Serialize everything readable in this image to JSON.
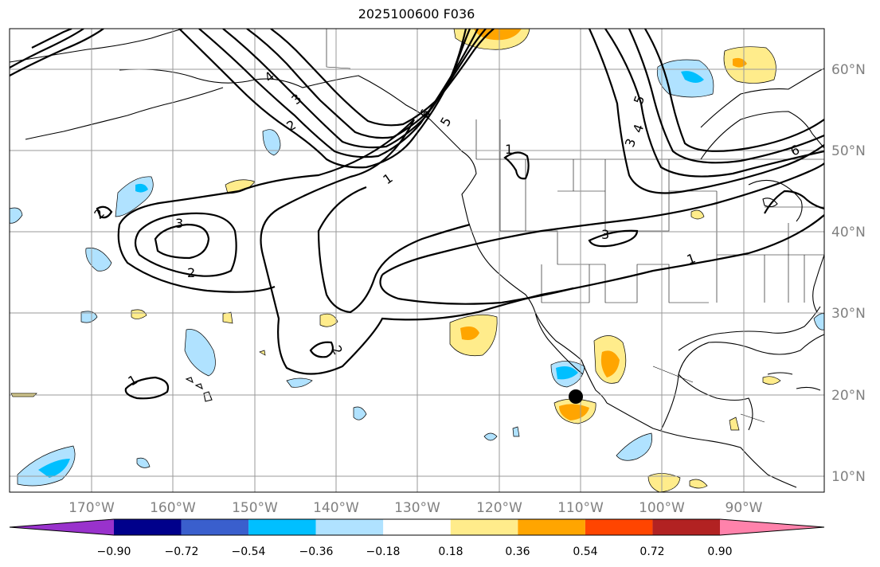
{
  "title": "2025100600 F036",
  "map": {
    "lon_ticks": [
      "170°W",
      "160°W",
      "150°W",
      "140°W",
      "130°W",
      "120°W",
      "110°W",
      "100°W",
      "90°W"
    ],
    "lat_ticks": [
      "60°N",
      "50°N",
      "40°N",
      "30°N",
      "20°N",
      "10°N"
    ],
    "contour_labels": [
      "1",
      "2",
      "3",
      "4",
      "5",
      "6"
    ],
    "marker": {
      "name": "point-marker",
      "lon": -110.2,
      "lat": 19.7
    }
  },
  "colorbar": {
    "ticks": [
      "−0.90",
      "−0.72",
      "−0.54",
      "−0.36",
      "−0.18",
      "0.18",
      "0.36",
      "0.54",
      "0.72",
      "0.90"
    ],
    "colors": [
      "#9932cc",
      "#00008b",
      "#3a5fcd",
      "#00bfff",
      "#b0e2ff",
      "#ffffff",
      "#ffec8b",
      "#ffa500",
      "#ff4500",
      "#b22222",
      "#ff82ab"
    ]
  }
}
